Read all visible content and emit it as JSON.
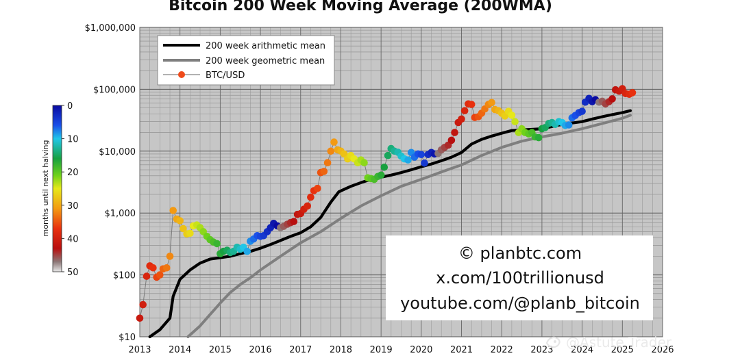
{
  "chart_data": {
    "type": "scatter",
    "title": "Bitcoin 200 Week Moving Average (200WMA)",
    "y_scale": "log",
    "ylim": [
      10,
      1000000
    ],
    "xlim": [
      2013,
      2026
    ],
    "y_ticks": [
      {
        "value": 10,
        "label": "$10"
      },
      {
        "value": 100,
        "label": "$100"
      },
      {
        "value": 1000,
        "label": "$1,000"
      },
      {
        "value": 10000,
        "label": "$10,000"
      },
      {
        "value": 100000,
        "label": "$100,000"
      },
      {
        "value": 1000000,
        "label": "$1,000,000"
      }
    ],
    "x_ticks": [
      {
        "value": 2013,
        "label": "2013"
      },
      {
        "value": 2014,
        "label": "2014"
      },
      {
        "value": 2015,
        "label": "2015"
      },
      {
        "value": 2016,
        "label": "2016"
      },
      {
        "value": 2017,
        "label": "2017"
      },
      {
        "value": 2018,
        "label": "2018"
      },
      {
        "value": 2019,
        "label": "2019"
      },
      {
        "value": 2020,
        "label": "2020"
      },
      {
        "value": 2021,
        "label": "2021"
      },
      {
        "value": 2022,
        "label": "2022"
      },
      {
        "value": 2023,
        "label": "2023"
      },
      {
        "value": 2024,
        "label": "2024"
      },
      {
        "value": 2025,
        "label": "2025"
      },
      {
        "value": 2026,
        "label": "2026"
      }
    ],
    "grid": true,
    "legend": {
      "position": "top-left",
      "entries": [
        {
          "label": "200 week arithmetic mean",
          "color": "#000000"
        },
        {
          "label": "200 week geometric mean",
          "color": "#7f7f7f"
        },
        {
          "label": "BTC/USD",
          "color": "#ef4b1b"
        }
      ]
    },
    "colorbar": {
      "label": "months until next halving",
      "min": 0,
      "max": 50,
      "ticks": [
        0,
        10,
        20,
        30,
        40,
        50
      ]
    },
    "series": [
      {
        "name": "200 week arithmetic mean",
        "style": "line",
        "color": "#000000",
        "x": [
          2013.25,
          2013.5,
          2013.75,
          2013.83,
          2014.0,
          2014.25,
          2014.5,
          2014.75,
          2015.0,
          2015.25,
          2015.5,
          2015.75,
          2016.0,
          2016.25,
          2016.5,
          2016.75,
          2017.0,
          2017.25,
          2017.5,
          2017.75,
          2017.95,
          2018.25,
          2018.5,
          2018.75,
          2019.0,
          2019.25,
          2019.5,
          2019.75,
          2020.0,
          2020.25,
          2020.5,
          2020.75,
          2021.0,
          2021.25,
          2021.5,
          2021.75,
          2022.0,
          2022.25,
          2022.5,
          2022.75,
          2023.0,
          2023.25,
          2023.5,
          2023.75,
          2024.0,
          2024.25,
          2024.5,
          2024.75,
          2025.0,
          2025.2
        ],
        "values": [
          10,
          13,
          20,
          45,
          85,
          120,
          155,
          180,
          190,
          200,
          220,
          240,
          270,
          310,
          360,
          420,
          480,
          600,
          850,
          1500,
          2200,
          2700,
          3100,
          3500,
          3800,
          4100,
          4500,
          5000,
          5600,
          6200,
          7000,
          8000,
          9500,
          13000,
          15500,
          17500,
          19500,
          21500,
          22000,
          22500,
          23000,
          25000,
          27000,
          28500,
          30000,
          33000,
          36000,
          39000,
          42000,
          45000
        ]
      },
      {
        "name": "200 week geometric mean",
        "style": "line",
        "color": "#7f7f7f",
        "x": [
          2014.2,
          2014.5,
          2014.75,
          2015.0,
          2015.25,
          2015.5,
          2015.75,
          2016.0,
          2016.5,
          2017.0,
          2017.5,
          2018.0,
          2018.5,
          2019.0,
          2019.5,
          2020.0,
          2020.5,
          2021.0,
          2021.5,
          2022.0,
          2022.5,
          2023.0,
          2023.5,
          2024.0,
          2024.5,
          2025.0,
          2025.2
        ],
        "values": [
          10,
          15,
          23,
          35,
          52,
          70,
          90,
          120,
          200,
          330,
          500,
          820,
          1300,
          1900,
          2700,
          3500,
          4600,
          6000,
          8500,
          11500,
          14500,
          17000,
          19500,
          23000,
          28000,
          34000,
          38000
        ]
      },
      {
        "name": "BTC/USD",
        "style": "scatter",
        "x": [
          2013.0,
          2013.08,
          2013.17,
          2013.25,
          2013.33,
          2013.42,
          2013.5,
          2013.58,
          2013.67,
          2013.75,
          2013.83,
          2013.92,
          2014.0,
          2014.08,
          2014.17,
          2014.25,
          2014.33,
          2014.42,
          2014.5,
          2014.58,
          2014.67,
          2014.75,
          2014.83,
          2014.92,
          2015.0,
          2015.08,
          2015.17,
          2015.25,
          2015.33,
          2015.42,
          2015.5,
          2015.58,
          2015.67,
          2015.75,
          2015.83,
          2015.92,
          2016.0,
          2016.08,
          2016.17,
          2016.25,
          2016.33,
          2016.42,
          2016.5,
          2016.58,
          2016.67,
          2016.75,
          2016.83,
          2016.92,
          2017.0,
          2017.08,
          2017.17,
          2017.25,
          2017.33,
          2017.42,
          2017.5,
          2017.58,
          2017.67,
          2017.75,
          2017.83,
          2017.92,
          2018.0,
          2018.08,
          2018.17,
          2018.25,
          2018.33,
          2018.42,
          2018.5,
          2018.58,
          2018.67,
          2018.75,
          2018.83,
          2018.92,
          2019.0,
          2019.08,
          2019.17,
          2019.25,
          2019.33,
          2019.42,
          2019.5,
          2019.58,
          2019.67,
          2019.75,
          2019.83,
          2019.92,
          2020.0,
          2020.08,
          2020.17,
          2020.25,
          2020.33,
          2020.42,
          2020.5,
          2020.58,
          2020.67,
          2020.75,
          2020.83,
          2020.92,
          2021.0,
          2021.08,
          2021.17,
          2021.25,
          2021.33,
          2021.42,
          2021.5,
          2021.58,
          2021.67,
          2021.75,
          2021.83,
          2021.92,
          2022.0,
          2022.08,
          2022.17,
          2022.25,
          2022.33,
          2022.42,
          2022.5,
          2022.58,
          2022.67,
          2022.75,
          2022.83,
          2022.92,
          2023.0,
          2023.08,
          2023.17,
          2023.25,
          2023.33,
          2023.42,
          2023.5,
          2023.58,
          2023.67,
          2023.75,
          2023.83,
          2023.92,
          2024.0,
          2024.08,
          2024.17,
          2024.25,
          2024.33,
          2024.42,
          2024.5,
          2024.58,
          2024.67,
          2024.75,
          2024.83,
          2024.92,
          2025.0,
          2025.08,
          2025.17,
          2025.25
        ],
        "values": [
          20,
          33,
          95,
          140,
          130,
          92,
          100,
          125,
          130,
          200,
          1100,
          800,
          750,
          560,
          460,
          470,
          620,
          640,
          580,
          500,
          420,
          370,
          340,
          320,
          220,
          240,
          250,
          230,
          240,
          280,
          260,
          280,
          240,
          350,
          380,
          430,
          420,
          430,
          500,
          580,
          680,
          620,
          580,
          610,
          660,
          700,
          730,
          950,
          980,
          1150,
          1300,
          1800,
          2300,
          2500,
          4500,
          4700,
          6500,
          10000,
          14000,
          10500,
          10000,
          9000,
          7500,
          8500,
          7500,
          6500,
          7200,
          6500,
          3700,
          3600,
          3500,
          3900,
          4100,
          5500,
          8500,
          11000,
          10000,
          9600,
          8300,
          7500,
          7200,
          9500,
          8000,
          9000,
          8800,
          6400,
          8800,
          9500,
          9000,
          9200,
          10500,
          11500,
          12500,
          15000,
          20000,
          29000,
          33000,
          45000,
          58000,
          57000,
          35000,
          36000,
          41000,
          48000,
          57000,
          61000,
          47000,
          45000,
          41000,
          37000,
          44000,
          38000,
          30000,
          20000,
          23000,
          20000,
          19000,
          20000,
          17000,
          16500,
          23000,
          24000,
          28000,
          29000,
          27000,
          30000,
          29000,
          26000,
          26500,
          34500,
          37700,
          42000,
          44000,
          62000,
          71000,
          63000,
          68000,
          62000,
          64000,
          58000,
          63000,
          70000,
          98000,
          93000,
          102000,
          85000,
          83000,
          88000
        ],
        "months_until_halving": [
          41,
          40,
          39,
          38,
          37,
          36,
          35,
          34,
          33,
          32,
          31,
          30,
          29,
          28,
          27,
          26,
          25,
          24,
          23,
          22,
          21,
          20,
          19,
          18,
          17,
          16,
          15,
          14,
          13,
          12,
          11,
          10,
          9,
          8,
          7,
          6,
          5,
          4,
          3,
          2,
          1,
          0,
          47,
          46,
          45,
          44,
          43,
          42,
          41,
          40,
          39,
          38,
          37,
          36,
          35,
          34,
          33,
          32,
          31,
          30,
          29,
          28,
          27,
          26,
          25,
          24,
          23,
          22,
          21,
          20,
          19,
          18,
          17,
          16,
          15,
          14,
          13,
          12,
          11,
          10,
          9,
          8,
          7,
          6,
          5,
          4,
          3,
          2,
          1,
          47,
          46,
          45,
          44,
          43,
          42,
          41,
          40,
          39,
          38,
          37,
          36,
          35,
          34,
          33,
          32,
          31,
          30,
          29,
          28,
          27,
          26,
          25,
          24,
          23,
          22,
          21,
          20,
          19,
          18,
          17,
          16,
          15,
          14,
          13,
          12,
          11,
          10,
          9,
          8,
          7,
          6,
          5,
          4,
          3,
          2,
          1,
          0,
          47,
          46,
          45,
          44,
          43,
          42,
          41,
          40,
          39,
          38,
          37
        ]
      }
    ]
  },
  "credit": {
    "line1": "© planbtc.com",
    "line2": "x.com/100trillionusd",
    "line3": "youtube.com/@planb_bitcoin"
  },
  "watermark": {
    "text": "@Astute Trader",
    "icon": "bird-logo-icon"
  }
}
